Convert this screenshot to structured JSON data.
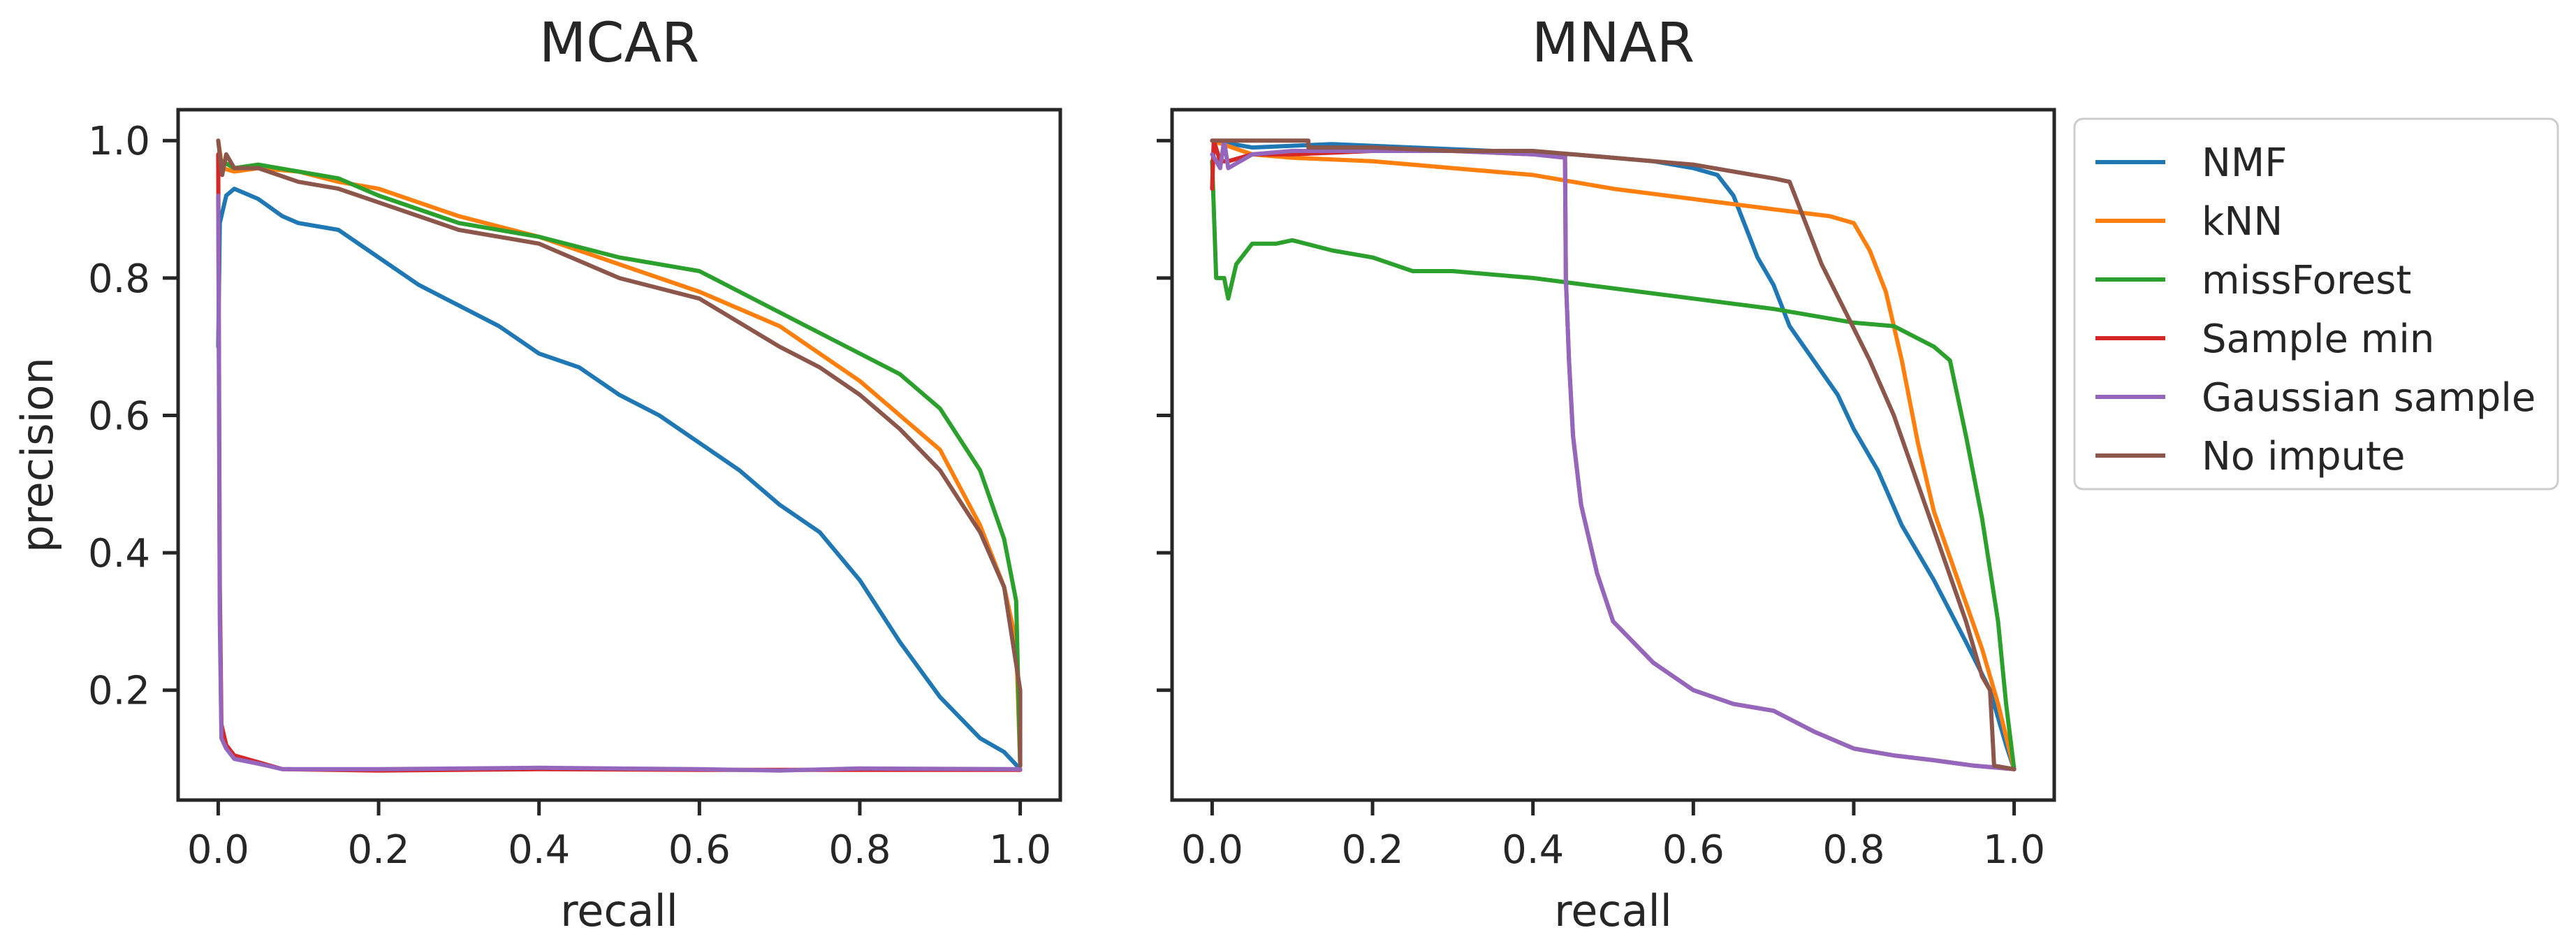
{
  "chart_data": [
    {
      "type": "line",
      "title": "MCAR",
      "xlabel": "recall",
      "ylabel": "precision",
      "xlim": [
        -0.05,
        1.05
      ],
      "ylim": [
        0.04,
        1.045
      ],
      "xticks": [
        "0.0",
        "0.2",
        "0.4",
        "0.6",
        "0.8",
        "1.0"
      ],
      "yticks": [
        "0.2",
        "0.4",
        "0.6",
        "0.8",
        "1.0"
      ],
      "grid": false,
      "series": [
        {
          "name": "NMF",
          "points": [
            [
              0.0,
              0.7
            ],
            [
              0.002,
              0.88
            ],
            [
              0.01,
              0.92
            ],
            [
              0.02,
              0.93
            ],
            [
              0.03,
              0.925
            ],
            [
              0.05,
              0.915
            ],
            [
              0.08,
              0.89
            ],
            [
              0.1,
              0.88
            ],
            [
              0.15,
              0.87
            ],
            [
              0.2,
              0.83
            ],
            [
              0.25,
              0.79
            ],
            [
              0.3,
              0.76
            ],
            [
              0.35,
              0.73
            ],
            [
              0.4,
              0.69
            ],
            [
              0.45,
              0.67
            ],
            [
              0.5,
              0.63
            ],
            [
              0.55,
              0.6
            ],
            [
              0.6,
              0.56
            ],
            [
              0.65,
              0.52
            ],
            [
              0.7,
              0.47
            ],
            [
              0.75,
              0.43
            ],
            [
              0.8,
              0.36
            ],
            [
              0.85,
              0.27
            ],
            [
              0.9,
              0.19
            ],
            [
              0.95,
              0.13
            ],
            [
              0.98,
              0.11
            ],
            [
              1.0,
              0.085
            ]
          ]
        },
        {
          "name": "kNN",
          "points": [
            [
              0.0,
              1.0
            ],
            [
              0.005,
              0.96
            ],
            [
              0.02,
              0.955
            ],
            [
              0.05,
              0.96
            ],
            [
              0.1,
              0.955
            ],
            [
              0.15,
              0.94
            ],
            [
              0.2,
              0.93
            ],
            [
              0.3,
              0.89
            ],
            [
              0.4,
              0.86
            ],
            [
              0.5,
              0.82
            ],
            [
              0.6,
              0.78
            ],
            [
              0.7,
              0.73
            ],
            [
              0.8,
              0.65
            ],
            [
              0.85,
              0.6
            ],
            [
              0.9,
              0.55
            ],
            [
              0.95,
              0.44
            ],
            [
              0.98,
              0.35
            ],
            [
              0.995,
              0.27
            ],
            [
              1.0,
              0.09
            ]
          ]
        },
        {
          "name": "missForest",
          "points": [
            [
              0.0,
              0.95
            ],
            [
              0.005,
              0.97
            ],
            [
              0.02,
              0.96
            ],
            [
              0.05,
              0.965
            ],
            [
              0.1,
              0.955
            ],
            [
              0.15,
              0.945
            ],
            [
              0.2,
              0.92
            ],
            [
              0.3,
              0.88
            ],
            [
              0.4,
              0.86
            ],
            [
              0.5,
              0.83
            ],
            [
              0.6,
              0.81
            ],
            [
              0.65,
              0.78
            ],
            [
              0.7,
              0.75
            ],
            [
              0.75,
              0.72
            ],
            [
              0.8,
              0.69
            ],
            [
              0.85,
              0.66
            ],
            [
              0.9,
              0.61
            ],
            [
              0.95,
              0.52
            ],
            [
              0.98,
              0.42
            ],
            [
              0.995,
              0.33
            ],
            [
              1.0,
              0.09
            ]
          ]
        },
        {
          "name": "Sample min",
          "points": [
            [
              0.0,
              0.98
            ],
            [
              0.002,
              0.35
            ],
            [
              0.004,
              0.15
            ],
            [
              0.01,
              0.12
            ],
            [
              0.02,
              0.105
            ],
            [
              0.05,
              0.095
            ],
            [
              0.08,
              0.085
            ],
            [
              0.2,
              0.083
            ],
            [
              0.4,
              0.085
            ],
            [
              0.6,
              0.084
            ],
            [
              0.8,
              0.084
            ],
            [
              1.0,
              0.084
            ]
          ]
        },
        {
          "name": "Gaussian sample",
          "points": [
            [
              0.0,
              0.92
            ],
            [
              0.002,
              0.3
            ],
            [
              0.004,
              0.13
            ],
            [
              0.01,
              0.115
            ],
            [
              0.02,
              0.1
            ],
            [
              0.05,
              0.093
            ],
            [
              0.08,
              0.085
            ],
            [
              0.2,
              0.085
            ],
            [
              0.4,
              0.087
            ],
            [
              0.6,
              0.085
            ],
            [
              0.7,
              0.083
            ],
            [
              0.8,
              0.086
            ],
            [
              1.0,
              0.085
            ]
          ]
        },
        {
          "name": "No impute",
          "points": [
            [
              0.0,
              1.0
            ],
            [
              0.005,
              0.95
            ],
            [
              0.01,
              0.98
            ],
            [
              0.02,
              0.96
            ],
            [
              0.05,
              0.96
            ],
            [
              0.1,
              0.94
            ],
            [
              0.15,
              0.93
            ],
            [
              0.2,
              0.91
            ],
            [
              0.3,
              0.87
            ],
            [
              0.4,
              0.85
            ],
            [
              0.5,
              0.8
            ],
            [
              0.6,
              0.77
            ],
            [
              0.7,
              0.7
            ],
            [
              0.75,
              0.67
            ],
            [
              0.8,
              0.63
            ],
            [
              0.85,
              0.58
            ],
            [
              0.9,
              0.52
            ],
            [
              0.95,
              0.43
            ],
            [
              0.98,
              0.35
            ],
            [
              1.0,
              0.2
            ],
            [
              1.0,
              0.09
            ]
          ]
        }
      ]
    },
    {
      "type": "line",
      "title": "MNAR",
      "xlabel": "recall",
      "ylabel": "",
      "xlim": [
        -0.05,
        1.05
      ],
      "ylim": [
        0.04,
        1.045
      ],
      "xticks": [
        "0.0",
        "0.2",
        "0.4",
        "0.6",
        "0.8",
        "1.0"
      ],
      "yticks": [],
      "grid": false,
      "series": [
        {
          "name": "NMF",
          "points": [
            [
              0.0,
              1.0
            ],
            [
              0.05,
              0.99
            ],
            [
              0.15,
              0.995
            ],
            [
              0.25,
              0.99
            ],
            [
              0.35,
              0.985
            ],
            [
              0.45,
              0.98
            ],
            [
              0.55,
              0.97
            ],
            [
              0.6,
              0.96
            ],
            [
              0.63,
              0.95
            ],
            [
              0.65,
              0.92
            ],
            [
              0.68,
              0.83
            ],
            [
              0.7,
              0.79
            ],
            [
              0.72,
              0.73
            ],
            [
              0.75,
              0.68
            ],
            [
              0.78,
              0.63
            ],
            [
              0.8,
              0.58
            ],
            [
              0.83,
              0.52
            ],
            [
              0.86,
              0.44
            ],
            [
              0.9,
              0.36
            ],
            [
              0.94,
              0.27
            ],
            [
              0.97,
              0.2
            ],
            [
              0.99,
              0.12
            ],
            [
              1.0,
              0.085
            ]
          ]
        },
        {
          "name": "kNN",
          "points": [
            [
              0.0,
              1.0
            ],
            [
              0.05,
              0.98
            ],
            [
              0.1,
              0.975
            ],
            [
              0.2,
              0.97
            ],
            [
              0.3,
              0.96
            ],
            [
              0.4,
              0.95
            ],
            [
              0.5,
              0.93
            ],
            [
              0.6,
              0.915
            ],
            [
              0.7,
              0.9
            ],
            [
              0.77,
              0.89
            ],
            [
              0.8,
              0.88
            ],
            [
              0.82,
              0.84
            ],
            [
              0.84,
              0.78
            ],
            [
              0.86,
              0.68
            ],
            [
              0.88,
              0.56
            ],
            [
              0.9,
              0.46
            ],
            [
              0.93,
              0.36
            ],
            [
              0.96,
              0.26
            ],
            [
              0.98,
              0.18
            ],
            [
              1.0,
              0.085
            ]
          ]
        },
        {
          "name": "missForest",
          "points": [
            [
              0.0,
              0.97
            ],
            [
              0.005,
              0.8
            ],
            [
              0.015,
              0.8
            ],
            [
              0.02,
              0.77
            ],
            [
              0.03,
              0.82
            ],
            [
              0.05,
              0.85
            ],
            [
              0.08,
              0.85
            ],
            [
              0.1,
              0.855
            ],
            [
              0.15,
              0.84
            ],
            [
              0.2,
              0.83
            ],
            [
              0.25,
              0.81
            ],
            [
              0.3,
              0.81
            ],
            [
              0.4,
              0.8
            ],
            [
              0.5,
              0.785
            ],
            [
              0.6,
              0.77
            ],
            [
              0.7,
              0.755
            ],
            [
              0.8,
              0.735
            ],
            [
              0.85,
              0.73
            ],
            [
              0.9,
              0.7
            ],
            [
              0.92,
              0.68
            ],
            [
              0.94,
              0.57
            ],
            [
              0.96,
              0.45
            ],
            [
              0.98,
              0.3
            ],
            [
              0.99,
              0.18
            ],
            [
              1.0,
              0.085
            ]
          ]
        },
        {
          "name": "Sample min",
          "points": [
            [
              0.0,
              0.93
            ],
            [
              0.002,
              1.0
            ],
            [
              0.01,
              0.97
            ],
            [
              0.02,
              0.97
            ],
            [
              0.05,
              0.98
            ],
            [
              0.1,
              0.98
            ],
            [
              0.2,
              0.985
            ],
            [
              0.3,
              0.985
            ],
            [
              0.4,
              0.98
            ],
            [
              0.44,
              0.98
            ],
            [
              0.441,
              0.8
            ],
            [
              0.445,
              0.68
            ],
            [
              0.45,
              0.57
            ],
            [
              0.46,
              0.47
            ],
            [
              0.48,
              0.37
            ],
            [
              0.5,
              0.3
            ],
            [
              0.55,
              0.24
            ],
            [
              0.6,
              0.2
            ],
            [
              0.65,
              0.18
            ],
            [
              0.7,
              0.17
            ],
            [
              0.75,
              0.14
            ],
            [
              0.8,
              0.115
            ],
            [
              0.85,
              0.105
            ],
            [
              0.9,
              0.098
            ],
            [
              0.95,
              0.09
            ],
            [
              1.0,
              0.085
            ]
          ]
        },
        {
          "name": "Gaussian sample",
          "points": [
            [
              0.0,
              0.98
            ],
            [
              0.005,
              0.97
            ],
            [
              0.01,
              0.96
            ],
            [
              0.015,
              1.0
            ],
            [
              0.02,
              0.96
            ],
            [
              0.05,
              0.98
            ],
            [
              0.1,
              0.985
            ],
            [
              0.2,
              0.985
            ],
            [
              0.3,
              0.985
            ],
            [
              0.4,
              0.98
            ],
            [
              0.44,
              0.975
            ],
            [
              0.441,
              0.8
            ],
            [
              0.445,
              0.68
            ],
            [
              0.45,
              0.57
            ],
            [
              0.46,
              0.47
            ],
            [
              0.48,
              0.37
            ],
            [
              0.5,
              0.3
            ],
            [
              0.55,
              0.24
            ],
            [
              0.6,
              0.2
            ],
            [
              0.65,
              0.18
            ],
            [
              0.7,
              0.17
            ],
            [
              0.75,
              0.14
            ],
            [
              0.8,
              0.115
            ],
            [
              0.85,
              0.105
            ],
            [
              0.9,
              0.098
            ],
            [
              0.95,
              0.09
            ],
            [
              1.0,
              0.085
            ]
          ]
        },
        {
          "name": "No impute",
          "points": [
            [
              0.0,
              1.0
            ],
            [
              0.12,
              1.0
            ],
            [
              0.12,
              0.99
            ],
            [
              0.2,
              0.99
            ],
            [
              0.3,
              0.985
            ],
            [
              0.4,
              0.985
            ],
            [
              0.5,
              0.975
            ],
            [
              0.6,
              0.965
            ],
            [
              0.65,
              0.955
            ],
            [
              0.7,
              0.945
            ],
            [
              0.72,
              0.94
            ],
            [
              0.74,
              0.88
            ],
            [
              0.76,
              0.82
            ],
            [
              0.79,
              0.75
            ],
            [
              0.82,
              0.68
            ],
            [
              0.85,
              0.6
            ],
            [
              0.88,
              0.5
            ],
            [
              0.91,
              0.4
            ],
            [
              0.94,
              0.3
            ],
            [
              0.96,
              0.22
            ],
            [
              0.97,
              0.2
            ],
            [
              0.975,
              0.09
            ],
            [
              1.0,
              0.085
            ]
          ]
        }
      ]
    }
  ],
  "legend": {
    "position": "outside upper right",
    "entries": [
      {
        "label": "NMF",
        "color": "#1f77b4"
      },
      {
        "label": "kNN",
        "color": "#ff7f0e"
      },
      {
        "label": "missForest",
        "color": "#2ca02c"
      },
      {
        "label": "Sample min",
        "color": "#d62728"
      },
      {
        "label": "Gaussian sample",
        "color": "#9467bd"
      },
      {
        "label": "No impute",
        "color": "#8c564b"
      }
    ]
  },
  "colors": {
    "axis": "#262626",
    "background": "#ffffff"
  }
}
